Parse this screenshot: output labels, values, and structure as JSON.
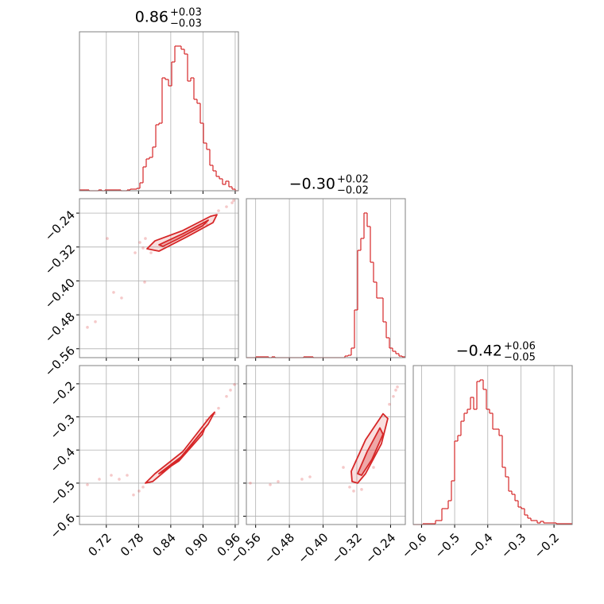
{
  "chart_data": [
    {
      "type": "histogram",
      "title": "0.86",
      "title_upper": "+0.03",
      "title_lower": "−0.03",
      "color": "#d62728",
      "bins": [
        0.67,
        0.6759,
        0.6818,
        0.6878,
        0.6937,
        0.6996,
        0.7055,
        0.7114,
        0.7174,
        0.7233,
        0.7292,
        0.7351,
        0.741,
        0.747,
        0.7529,
        0.7588,
        0.7647,
        0.7706,
        0.7766,
        0.7825,
        0.7884,
        0.7943,
        0.8002,
        0.8062,
        0.8121,
        0.818,
        0.8239,
        0.8298,
        0.8358,
        0.8417,
        0.8476,
        0.8535,
        0.8594,
        0.8654,
        0.8713,
        0.8772,
        0.8831,
        0.889,
        0.895,
        0.9009,
        0.9068,
        0.9127,
        0.9186,
        0.9246,
        0.9305,
        0.9364,
        0.9423,
        0.9482,
        0.9542,
        0.9601,
        0.966
      ],
      "values": [
        1,
        1,
        1,
        0,
        0,
        0,
        1,
        0,
        1,
        1,
        1,
        1,
        1,
        0,
        0,
        1,
        2,
        2,
        3,
        10,
        30,
        40,
        42,
        55,
        83,
        85,
        142,
        140,
        132,
        162,
        182,
        182,
        178,
        172,
        138,
        142,
        115,
        110,
        85,
        60,
        52,
        32,
        25,
        18,
        15,
        8,
        12,
        5,
        2,
        0
      ],
      "xlim": [
        0.67,
        0.966
      ],
      "ylim": [
        0,
        200
      ],
      "xticks": [
        0.72,
        0.78,
        0.84,
        {
          "value": 0.9,
          "label": "0.90"
        },
        0.96
      ],
      "grid": true
    },
    {
      "type": "scatter",
      "color": "#d62728",
      "x": [
        0.7884,
        0.7825,
        0.7928,
        0.8032,
        0.929,
        0.9438,
        0.9542,
        0.9571,
        0.7336,
        0.7484,
        0.6996,
        0.6848,
        0.7914,
        0.7218,
        0.7736,
        0.9068
      ],
      "y": [
        -0.3223,
        -0.3092,
        -0.2999,
        -0.3336,
        -0.2344,
        -0.225,
        -0.2157,
        -0.2101,
        -0.4271,
        -0.4402,
        -0.4963,
        -0.5094,
        -0.4028,
        -0.2999,
        -0.3336,
        -0.2662
      ],
      "contours": [
        {
          "x": [
            0.7958,
            0.8106,
            0.8624,
            0.9142,
            0.926,
            0.9186,
            0.8698,
            0.818
          ],
          "y": [
            -0.3242,
            -0.3055,
            -0.2812,
            -0.2475,
            -0.2437,
            -0.2625,
            -0.2961,
            -0.3298
          ]
        },
        {
          "x": [
            0.818,
            0.8624,
            0.9098,
            0.8994,
            0.855,
            0.8254
          ],
          "y": [
            -0.3148,
            -0.2887,
            -0.2568,
            -0.2699,
            -0.2999,
            -0.3185
          ]
        }
      ],
      "xlim": [
        0.67,
        0.966
      ],
      "ylim": [
        -0.581,
        -0.206
      ],
      "xticks": [
        0.72,
        0.78,
        0.84,
        {
          "value": 0.9,
          "label": "0.90"
        },
        0.96
      ],
      "yticks": [
        {
          "value": -0.56,
          "label": "−0.56"
        },
        {
          "value": -0.48,
          "label": "−0.48"
        },
        {
          "value": -0.4,
          "label": "−0.40"
        },
        {
          "value": -0.32,
          "label": "−0.32"
        },
        {
          "value": -0.24,
          "label": "−0.24"
        }
      ],
      "grid": true
    },
    {
      "type": "histogram",
      "title": "−0.30",
      "title_upper": "+0.02",
      "title_lower": "−0.02",
      "color": "#d62728",
      "bins": [
        -0.582,
        -0.5745,
        -0.5669,
        -0.5594,
        -0.5518,
        -0.5443,
        -0.5368,
        -0.5292,
        -0.5217,
        -0.5141,
        -0.5066,
        -0.4991,
        -0.4915,
        -0.484,
        -0.4764,
        -0.4689,
        -0.4614,
        -0.4538,
        -0.4463,
        -0.4387,
        -0.4312,
        -0.4237,
        -0.4161,
        -0.4086,
        -0.401,
        -0.3935,
        -0.386,
        -0.3784,
        -0.3709,
        -0.3633,
        -0.3558,
        -0.3483,
        -0.3407,
        -0.3332,
        -0.3256,
        -0.3181,
        -0.3106,
        -0.303,
        -0.2955,
        -0.2879,
        -0.2804,
        -0.2729,
        -0.2653,
        -0.2578,
        -0.2502,
        -0.2427,
        -0.2352,
        -0.2276,
        -0.2201,
        -0.2125,
        -0.205
      ],
      "values": [
        0,
        0,
        0,
        1,
        1,
        1,
        1,
        0,
        1,
        0,
        0,
        0,
        0,
        0,
        0,
        0,
        0,
        0,
        1,
        1,
        1,
        0,
        0,
        0,
        0,
        0,
        0,
        0,
        0,
        0,
        0,
        2,
        3,
        12,
        60,
        135,
        150,
        182,
        165,
        120,
        95,
        75,
        75,
        45,
        25,
        12,
        8,
        5,
        2,
        1
      ],
      "xlim": [
        -0.582,
        -0.205
      ],
      "ylim": [
        0,
        200
      ],
      "xticks": [
        {
          "value": -0.56,
          "label": "−0.56"
        },
        {
          "value": -0.48,
          "label": "−0.48"
        },
        {
          "value": -0.4,
          "label": "−0.40"
        },
        {
          "value": -0.32,
          "label": "−0.32"
        },
        {
          "value": -0.24,
          "label": "−0.24"
        }
      ],
      "grid": true
    },
    {
      "type": "scatter",
      "color": "#d62728",
      "x": [
        0.781,
        0.7706,
        0.929,
        0.9438,
        0.9586,
        0.9512,
        0.7292,
        0.744,
        0.6848,
        0.707,
        0.7588,
        0.7884,
        0.9068,
        0.9216
      ],
      "y": [
        -0.5238,
        -0.5357,
        -0.2738,
        -0.2381,
        -0.2024,
        -0.219,
        -0.4762,
        -0.4881,
        -0.5048,
        -0.4881,
        -0.4762,
        -0.5119,
        -0.3095,
        -0.2905
      ],
      "contours": [
        {
          "x": [
            0.7928,
            0.8106,
            0.8624,
            0.9142,
            0.9216,
            0.9098,
            0.855,
            0.8062
          ],
          "y": [
            -0.5,
            -0.4714,
            -0.4048,
            -0.2976,
            -0.2857,
            -0.3214,
            -0.4286,
            -0.4952
          ]
        },
        {
          "x": [
            0.818,
            0.8624,
            0.9034,
            0.899,
            0.855,
            0.8254
          ],
          "y": [
            -0.4714,
            -0.4167,
            -0.3333,
            -0.3524,
            -0.4333,
            -0.4643
          ]
        }
      ],
      "xlim": [
        0.67,
        0.966
      ],
      "ylim": [
        -0.625,
        -0.145
      ],
      "xticks": [
        0.72,
        0.78,
        0.84,
        {
          "value": 0.9,
          "label": "0.90"
        },
        0.96
      ],
      "yticks": [
        {
          "value": -0.6,
          "label": "−0.6"
        },
        {
          "value": -0.5,
          "label": "−0.5"
        },
        {
          "value": -0.4,
          "label": "−0.4"
        },
        {
          "value": -0.3,
          "label": "−0.3"
        },
        {
          "value": -0.2,
          "label": "−0.2"
        }
      ],
      "grid": true
    },
    {
      "type": "scatter",
      "color": "#d62728",
      "x": [
        -0.337,
        -0.3087,
        -0.3275,
        -0.2427,
        -0.2333,
        -0.2276,
        -0.5066,
        -0.5254,
        -0.4501,
        -0.4312,
        -0.5726,
        -0.2804,
        -0.2238,
        -0.352
      ],
      "y": [
        -0.5119,
        -0.519,
        -0.5238,
        -0.2619,
        -0.2381,
        -0.219,
        -0.4952,
        -0.5048,
        -0.4881,
        -0.481,
        -0.5,
        -0.4524,
        -0.2095,
        -0.4524
      ],
      "contours": [
        {
          "x": [
            -0.3313,
            -0.3332,
            -0.2993,
            -0.2578,
            -0.2465,
            -0.2616,
            -0.2993,
            -0.3181
          ],
          "y": [
            -0.4952,
            -0.4643,
            -0.369,
            -0.2905,
            -0.3048,
            -0.381,
            -0.4714,
            -0.5
          ]
        },
        {
          "x": [
            -0.3181,
            -0.2955,
            -0.2653,
            -0.2578,
            -0.2842,
            -0.3087
          ],
          "y": [
            -0.4714,
            -0.4048,
            -0.3333,
            -0.3524,
            -0.4286,
            -0.4762
          ]
        }
      ],
      "xlim": [
        -0.582,
        -0.205
      ],
      "ylim": [
        -0.625,
        -0.145
      ],
      "xticks": [
        {
          "value": -0.56,
          "label": "−0.56"
        },
        {
          "value": -0.48,
          "label": "−0.48"
        },
        {
          "value": -0.4,
          "label": "−0.40"
        },
        {
          "value": -0.32,
          "label": "−0.32"
        },
        {
          "value": -0.24,
          "label": "−0.24"
        }
      ],
      "yticks": [
        {
          "value": -0.6,
          "label": "−0.6"
        },
        {
          "value": -0.5,
          "label": "−0.5"
        },
        {
          "value": -0.4,
          "label": "−0.4"
        },
        {
          "value": -0.3,
          "label": "−0.3"
        },
        {
          "value": -0.2,
          "label": "−0.2"
        }
      ],
      "grid": true
    },
    {
      "type": "histogram",
      "title": "−0.42",
      "title_upper": "+0.06",
      "title_lower": "−0.05",
      "color": "#d62728",
      "bins": [
        -0.625,
        -0.6154,
        -0.6058,
        -0.5962,
        -0.5866,
        -0.577,
        -0.5674,
        -0.5578,
        -0.5482,
        -0.5386,
        -0.529,
        -0.5194,
        -0.5098,
        -0.5002,
        -0.4906,
        -0.481,
        -0.4714,
        -0.4618,
        -0.4522,
        -0.4426,
        -0.433,
        -0.4234,
        -0.4138,
        -0.4042,
        -0.3946,
        -0.385,
        -0.3754,
        -0.3658,
        -0.3562,
        -0.3466,
        -0.337,
        -0.3274,
        -0.3178,
        -0.3082,
        -0.2986,
        -0.289,
        -0.2794,
        -0.2698,
        -0.2602,
        -0.2506,
        -0.241,
        -0.2314,
        -0.2218,
        -0.2122,
        -0.2026,
        -0.193,
        -0.1834,
        -0.1738,
        -0.1642,
        -0.1546,
        -0.145
      ],
      "values": [
        0,
        0,
        0,
        1,
        1,
        1,
        1,
        5,
        5,
        20,
        20,
        30,
        55,
        105,
        112,
        130,
        140,
        145,
        160,
        145,
        180,
        182,
        170,
        145,
        140,
        120,
        120,
        112,
        72,
        60,
        42,
        38,
        30,
        22,
        20,
        12,
        8,
        5,
        5,
        2,
        4,
        2,
        2,
        2,
        2,
        1,
        1,
        1,
        1,
        1
      ],
      "xlim": [
        -0.625,
        -0.145
      ],
      "ylim": [
        0,
        200
      ],
      "xticks": [
        {
          "value": -0.6,
          "label": "−0.6"
        },
        {
          "value": -0.5,
          "label": "−0.5"
        },
        {
          "value": -0.4,
          "label": "−0.4"
        },
        {
          "value": -0.3,
          "label": "−0.3"
        },
        {
          "value": -0.2,
          "label": "−0.2"
        }
      ],
      "grid": true
    }
  ]
}
